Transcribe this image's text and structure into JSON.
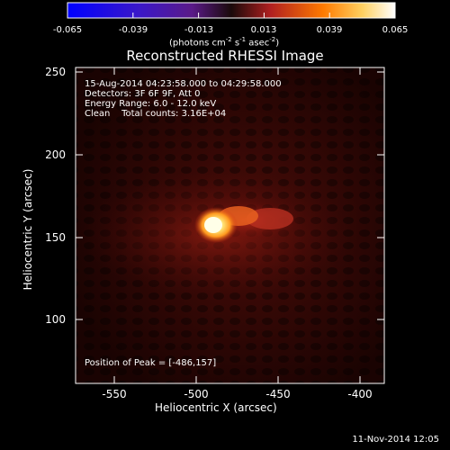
{
  "colorbar": {
    "ticks": [
      "-0.065",
      "-0.039",
      "-0.013",
      "0.013",
      "0.039",
      "0.065"
    ],
    "units_label": "(photons cm",
    "units_exp1": "-2",
    "units_mid": " s",
    "units_exp2": "-1",
    "units_end": " asec",
    "units_exp3": "-2",
    "units_close": ")"
  },
  "plot": {
    "title": "Reconstructed RHESSI Image",
    "info_lines": [
      "15-Aug-2014 04:23:58.000 to 04:29:58.000",
      "Detectors: 3F 6F 9F, Att 0",
      "Energy Range: 6.0 - 12.0 keV",
      "Clean    Total counts: 3.16E+04"
    ],
    "peak_text": "Position of Peak = [-486,157]",
    "xlabel": "Heliocentric X (arcsec)",
    "ylabel": "Heliocentric Y (arcsec)",
    "xticks": [
      "-550",
      "-500",
      "-450",
      "-400"
    ],
    "yticks": [
      "250",
      "200",
      "150",
      "100"
    ],
    "x_range": [
      -576,
      -388
    ],
    "y_range": [
      60,
      255
    ],
    "peak_position": [
      -486,
      157
    ]
  },
  "footer": {
    "timestamp": "11-Nov-2014 12:05"
  },
  "colors": {
    "background": "#000000",
    "text": "#ffffff"
  }
}
